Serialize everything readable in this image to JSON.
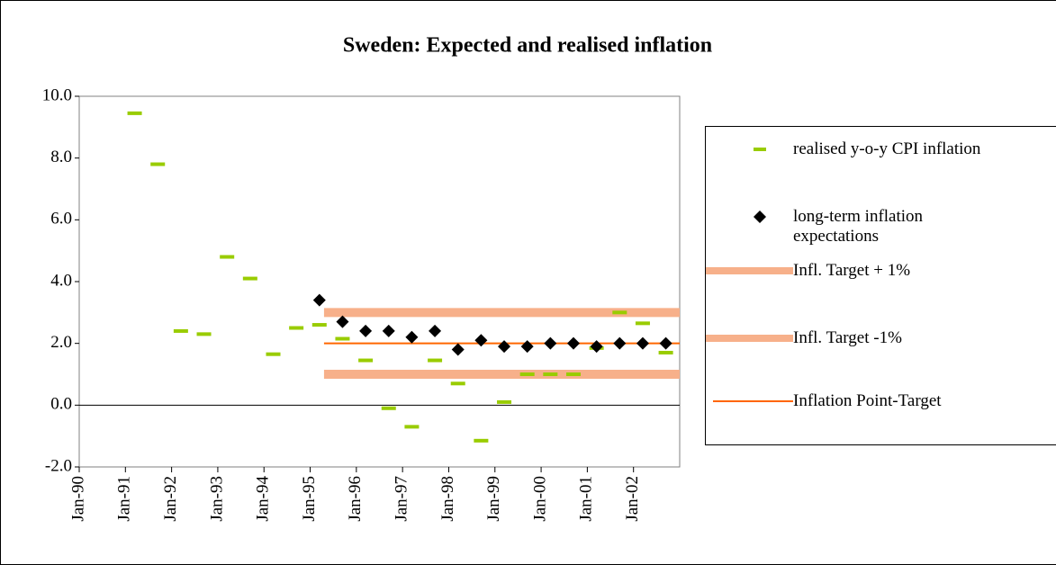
{
  "chart_data": {
    "type": "scatter",
    "title": "Sweden: Expected and realised inflation",
    "xlim": [
      1990,
      2003
    ],
    "xticks": [
      {
        "value": 1990,
        "label": "Jan-90"
      },
      {
        "value": 1991,
        "label": "Jan-91"
      },
      {
        "value": 1992,
        "label": "Jan-92"
      },
      {
        "value": 1993,
        "label": "Jan-93"
      },
      {
        "value": 1994,
        "label": "Jan-94"
      },
      {
        "value": 1995,
        "label": "Jan-95"
      },
      {
        "value": 1996,
        "label": "Jan-96"
      },
      {
        "value": 1997,
        "label": "Jan-97"
      },
      {
        "value": 1998,
        "label": "Jan-98"
      },
      {
        "value": 1999,
        "label": "Jan-99"
      },
      {
        "value": 2000,
        "label": "Jan-00"
      },
      {
        "value": 2001,
        "label": "Jan-01"
      },
      {
        "value": 2002,
        "label": "Jan-02"
      }
    ],
    "ylim": [
      -2,
      10
    ],
    "yticks": [
      {
        "value": -2,
        "label": "-2.0"
      },
      {
        "value": 0,
        "label": "0.0"
      },
      {
        "value": 2,
        "label": "2.0"
      },
      {
        "value": 4,
        "label": "4.0"
      },
      {
        "value": 6,
        "label": "6.0"
      },
      {
        "value": 8,
        "label": "8.0"
      },
      {
        "value": 10,
        "label": "10.0"
      }
    ],
    "series": [
      {
        "name": "realised y-o-y CPI inflation",
        "color": "#99cc00",
        "marker": "dash",
        "x": [
          1991.2,
          1991.7,
          1992.2,
          1992.7,
          1993.2,
          1993.7,
          1994.2,
          1994.7,
          1995.2,
          1995.7,
          1996.2,
          1996.7,
          1997.2,
          1997.7,
          1998.2,
          1998.7,
          1999.2,
          1999.7,
          2000.2,
          2000.7,
          2001.2,
          2001.7,
          2002.2,
          2002.7
        ],
        "values": [
          9.45,
          7.8,
          2.4,
          2.3,
          4.8,
          4.1,
          1.65,
          2.5,
          2.6,
          2.15,
          1.45,
          -0.1,
          -0.7,
          1.45,
          0.7,
          -1.15,
          0.1,
          1.0,
          1.0,
          1.0,
          1.85,
          3.0,
          2.65,
          1.7
        ]
      },
      {
        "name": "long-term inflation expectations",
        "color": "#000000",
        "marker": "diamond",
        "x": [
          1995.2,
          1995.7,
          1996.2,
          1996.7,
          1997.2,
          1997.7,
          1998.2,
          1998.7,
          1999.2,
          1999.7,
          2000.2,
          2000.7,
          2001.2,
          2001.7,
          2002.2,
          2002.7
        ],
        "values": [
          3.4,
          2.7,
          2.4,
          2.4,
          2.2,
          2.4,
          1.8,
          2.1,
          1.9,
          1.9,
          2.0,
          2.0,
          1.9,
          2.0,
          2.0,
          2.0
        ]
      },
      {
        "name": "Infl. Target + 1%",
        "color": "#f7b08a",
        "marker": "band",
        "x": [
          1995.3,
          2003
        ],
        "values": [
          3,
          3
        ]
      },
      {
        "name": "Infl. Target -1%",
        "color": "#f7b08a",
        "marker": "band",
        "x": [
          1995.3,
          2003
        ],
        "values": [
          1,
          1
        ]
      },
      {
        "name": "Inflation Point-Target",
        "color": "#ff6600",
        "marker": "line",
        "x": [
          1995.3,
          2003
        ],
        "values": [
          2,
          2
        ]
      }
    ]
  }
}
